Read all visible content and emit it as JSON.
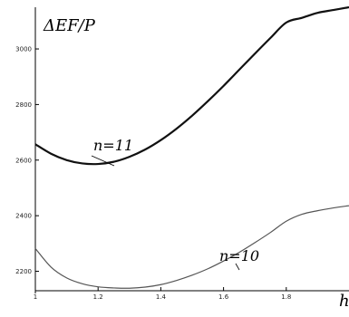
{
  "chart_data": {
    "type": "line",
    "ylabel": "ΔEF/P",
    "xlabel": "h",
    "xlim": [
      1.0,
      2.0
    ],
    "ylim": [
      2130,
      3150
    ],
    "x_ticks": [
      1.0,
      1.2,
      1.4,
      1.6,
      1.8
    ],
    "x_tick_labels": [
      "1",
      "1.2",
      "1.4",
      "1.6",
      "1.8"
    ],
    "y_ticks": [
      2200,
      2400,
      2600,
      2800,
      3000
    ],
    "y_tick_labels": [
      "2200",
      "2400",
      "2600",
      "2800",
      "3000"
    ],
    "grid": false,
    "series": [
      {
        "name": "n=11",
        "color": "#111111",
        "x": [
          1.0,
          1.05,
          1.1,
          1.15,
          1.2,
          1.25,
          1.3,
          1.35,
          1.4,
          1.45,
          1.5,
          1.55,
          1.6,
          1.65,
          1.7,
          1.75,
          1.8,
          1.85,
          1.9,
          1.95,
          2.0
        ],
        "y": [
          2657,
          2623,
          2600,
          2588,
          2586,
          2594,
          2612,
          2638,
          2672,
          2713,
          2760,
          2812,
          2867,
          2925,
          2983,
          3040,
          3095,
          3112,
          3130,
          3140,
          3150
        ]
      },
      {
        "name": "n=10",
        "color": "#555555",
        "x": [
          1.0,
          1.05,
          1.1,
          1.15,
          1.2,
          1.25,
          1.3,
          1.35,
          1.4,
          1.45,
          1.5,
          1.55,
          1.6,
          1.65,
          1.7,
          1.75,
          1.8,
          1.85,
          1.9,
          1.95,
          2.0
        ],
        "y": [
          2282,
          2215,
          2176,
          2155,
          2144,
          2140,
          2139,
          2143,
          2152,
          2167,
          2186,
          2209,
          2237,
          2268,
          2303,
          2340,
          2380,
          2405,
          2418,
          2428,
          2436
        ]
      }
    ]
  }
}
